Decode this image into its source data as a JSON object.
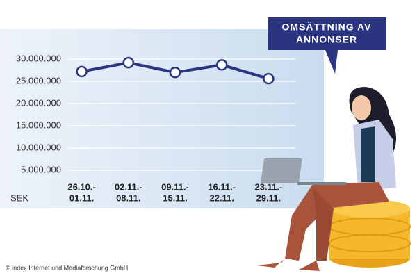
{
  "chart_data": {
    "type": "line",
    "title": [
      "OMSÄTTNING AV",
      "ANNONSER"
    ],
    "y_label": "SEK",
    "source": "© index Internet und Mediaforschung GmbH",
    "categories": [
      [
        "26.10.-",
        "01.11."
      ],
      [
        "02.11.-",
        "08.11."
      ],
      [
        "09.11.-",
        "15.11."
      ],
      [
        "16.11.-",
        "22.11."
      ],
      [
        "23.11.-",
        "29.11."
      ]
    ],
    "series": [
      {
        "color": "#2b3481",
        "values": [
          27200000,
          29200000,
          27000000,
          28700000,
          25600000
        ]
      }
    ],
    "ylim": [
      0,
      30000000
    ],
    "yticks": [
      {
        "value": 5000000,
        "label": "5.000.000"
      },
      {
        "value": 10000000,
        "label": "10.000.000"
      },
      {
        "value": 15000000,
        "label": "15.000.000"
      },
      {
        "value": 20000000,
        "label": "20.000.000"
      },
      {
        "value": 25000000,
        "label": "25.000.000"
      },
      {
        "value": 30000000,
        "label": "30.000.000"
      }
    ],
    "grid": true
  }
}
